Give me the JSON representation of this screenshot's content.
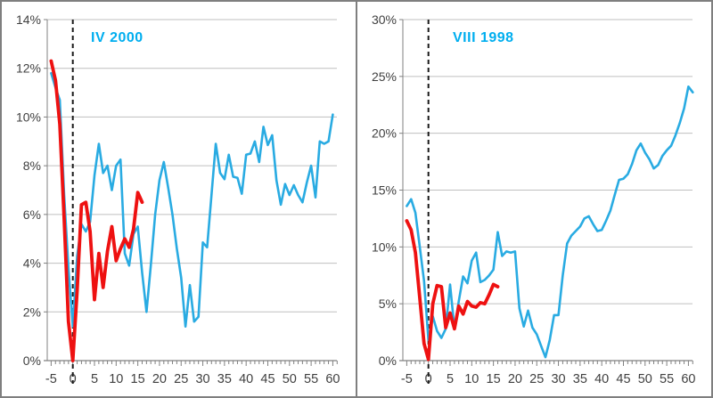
{
  "frame": {
    "border_color": "#7f7f7f",
    "background": "#ffffff",
    "divider_color": "#7f7f7f"
  },
  "style": {
    "grid_color": "#bfbfbf",
    "axis_color": "#808080",
    "tick_color": "#808080",
    "label_color": "#3f3f3f",
    "event_line_color": "#1a1a1a"
  },
  "chart_data": [
    {
      "type": "line",
      "title": "IV 2000",
      "title_color": "#00aeef",
      "xlabel": "",
      "ylabel": "",
      "xlim": [
        -5.8,
        62
      ],
      "ylim": [
        0,
        14
      ],
      "grid": true,
      "legend": "none",
      "event_line_x": 0,
      "x_tick_values": [
        -5,
        0,
        5,
        10,
        15,
        20,
        25,
        30,
        35,
        40,
        45,
        50,
        55,
        60
      ],
      "x_tick_labels": [
        "-5",
        "0",
        "5",
        "10",
        "15",
        "20",
        "25",
        "30",
        "35",
        "40",
        "45",
        "50",
        "55",
        "60"
      ],
      "y_tick_values": [
        0,
        2,
        4,
        6,
        8,
        10,
        12,
        14
      ],
      "y_tick_labels": [
        "0%",
        "2%",
        "4%",
        "6%",
        "8%",
        "10%",
        "12%",
        "14%"
      ],
      "series": [
        {
          "name": "blue-series",
          "color": "#29abe2",
          "line_width": 2.6,
          "x_start": -5,
          "x_step": 1,
          "values": [
            11.8,
            11.2,
            10.7,
            6.8,
            3.8,
            1.4,
            4.3,
            5.6,
            5.3,
            5.7,
            7.6,
            8.9,
            7.7,
            8.0,
            7.0,
            8.0,
            8.25,
            4.4,
            3.9,
            5.2,
            5.5,
            3.6,
            2.0,
            3.9,
            6.0,
            7.4,
            8.15,
            7.1,
            6.0,
            4.6,
            3.4,
            1.4,
            3.1,
            1.6,
            1.8,
            4.85,
            4.65,
            6.8,
            8.9,
            7.7,
            7.45,
            8.45,
            7.55,
            7.5,
            6.85,
            8.45,
            8.5,
            9.0,
            8.15,
            9.6,
            8.85,
            9.25,
            7.4,
            6.4,
            7.25,
            6.8,
            7.2,
            6.8,
            6.5,
            7.3,
            8.0,
            6.7,
            9.0,
            8.9,
            9.0,
            10.1
          ]
        },
        {
          "name": "red-series",
          "color": "#ee1111",
          "line_width": 3.8,
          "x_start": -5,
          "x_step": 1,
          "values": [
            12.3,
            11.5,
            9.7,
            5.8,
            1.6,
            0.0,
            2.9,
            6.4,
            6.5,
            5.3,
            2.5,
            4.4,
            3.0,
            4.5,
            5.5,
            4.1,
            4.6,
            5.0,
            4.65,
            5.4,
            6.9,
            6.5
          ]
        }
      ]
    },
    {
      "type": "line",
      "title": "VIII 1998",
      "title_color": "#00aeef",
      "xlabel": "",
      "ylabel": "",
      "xlim": [
        -5.8,
        62
      ],
      "ylim": [
        0,
        30
      ],
      "grid": true,
      "legend": "none",
      "event_line_x": 0,
      "x_tick_values": [
        -5,
        0,
        5,
        10,
        15,
        20,
        25,
        30,
        35,
        40,
        45,
        50,
        55,
        60
      ],
      "x_tick_labels": [
        "-5",
        "0",
        "5",
        "10",
        "15",
        "20",
        "25",
        "30",
        "35",
        "40",
        "45",
        "50",
        "55",
        "60"
      ],
      "y_tick_values": [
        0,
        5,
        10,
        15,
        20,
        25,
        30
      ],
      "y_tick_labels": [
        "0%",
        "5%",
        "10%",
        "15%",
        "20%",
        "25%",
        "30%"
      ],
      "series": [
        {
          "name": "blue-series",
          "color": "#29abe2",
          "line_width": 2.6,
          "x_start": -5,
          "x_step": 1,
          "values": [
            13.6,
            14.2,
            13.0,
            10.0,
            7.0,
            1.8,
            3.9,
            2.6,
            2.0,
            2.8,
            6.7,
            2.8,
            5.2,
            7.4,
            6.8,
            8.8,
            9.5,
            6.9,
            7.1,
            7.5,
            8.0,
            11.3,
            9.2,
            9.6,
            9.5,
            9.6,
            4.6,
            3.0,
            4.4,
            2.9,
            2.3,
            1.3,
            0.3,
            1.8,
            4.0,
            4.0,
            7.5,
            10.3,
            11.0,
            11.4,
            11.8,
            12.5,
            12.7,
            12.0,
            11.4,
            11.5,
            12.3,
            13.2,
            14.6,
            15.9,
            16.0,
            16.4,
            17.3,
            18.5,
            19.1,
            18.3,
            17.7,
            16.9,
            17.2,
            18.0,
            18.5,
            18.9,
            19.8,
            20.9,
            22.2,
            24.1,
            23.6
          ]
        },
        {
          "name": "red-series",
          "color": "#ee1111",
          "line_width": 3.8,
          "x_start": -5,
          "x_step": 1,
          "values": [
            12.3,
            11.5,
            9.5,
            5.5,
            1.5,
            0.1,
            5.0,
            6.6,
            6.5,
            2.9,
            4.2,
            2.8,
            4.8,
            4.1,
            5.2,
            4.8,
            4.7,
            5.1,
            5.0,
            5.8,
            6.7,
            6.5
          ]
        }
      ]
    }
  ]
}
